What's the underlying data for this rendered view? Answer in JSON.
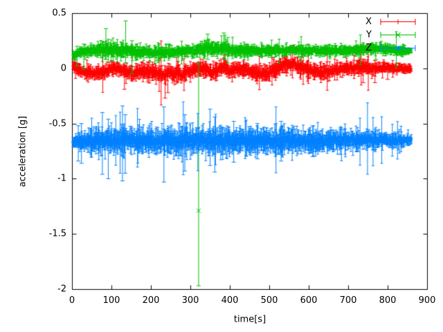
{
  "chart_data": {
    "type": "scatter",
    "style": "points-with-yerrorbars",
    "title": "",
    "xlabel": "time[s]",
    "ylabel": "acceleration [g]",
    "xlim": [
      0,
      900
    ],
    "ylim": [
      -2,
      0.5
    ],
    "grid": false,
    "background": "#ffffff",
    "border_color": "#000000",
    "xticks": [
      {
        "v": 0,
        "label": "0"
      },
      {
        "v": 100,
        "label": "100"
      },
      {
        "v": 200,
        "label": "200"
      },
      {
        "v": 300,
        "label": "300"
      },
      {
        "v": 400,
        "label": "400"
      },
      {
        "v": 500,
        "label": "500"
      },
      {
        "v": 600,
        "label": "600"
      },
      {
        "v": 700,
        "label": "700"
      },
      {
        "v": 800,
        "label": "800"
      },
      {
        "v": 900,
        "label": "900"
      }
    ],
    "yticks": [
      {
        "v": 0.5,
        "label": "0.5"
      },
      {
        "v": 0,
        "label": "0"
      },
      {
        "v": -0.5,
        "label": "-0.5"
      },
      {
        "v": -1,
        "label": "-1"
      },
      {
        "v": -1.5,
        "label": "-1.5"
      },
      {
        "v": -2,
        "label": "-2"
      }
    ],
    "legend": {
      "position": "top-right-inside",
      "entries": [
        {
          "label": "X",
          "color": "#ff0000",
          "marker": "plus"
        },
        {
          "label": "Y",
          "color": "#00c000",
          "marker": "cross"
        },
        {
          "label": "Z",
          "color": "#0080ff",
          "marker": "star"
        }
      ]
    },
    "series": [
      {
        "name": "X",
        "color": "#ff0000",
        "marker": "plus",
        "seed": 101,
        "t_start": 2,
        "t_end": 860,
        "dt": 1,
        "description": "noisy band around 0 g with small error bars",
        "mean_path": [
          [
            2,
            0.02
          ],
          [
            10,
            0.0
          ],
          [
            25,
            -0.02
          ],
          [
            50,
            -0.04
          ],
          [
            75,
            -0.04
          ],
          [
            95,
            -0.01
          ],
          [
            115,
            0.0
          ],
          [
            130,
            -0.02
          ],
          [
            150,
            -0.05
          ],
          [
            170,
            -0.03
          ],
          [
            195,
            -0.03
          ],
          [
            215,
            -0.04
          ],
          [
            233,
            -0.07
          ],
          [
            248,
            -0.03
          ],
          [
            258,
            -0.06
          ],
          [
            268,
            -0.01
          ],
          [
            278,
            -0.06
          ],
          [
            292,
            -0.03
          ],
          [
            310,
            -0.02
          ],
          [
            335,
            0.0
          ],
          [
            355,
            -0.04
          ],
          [
            372,
            -0.01
          ],
          [
            388,
            0.02
          ],
          [
            398,
            -0.03
          ],
          [
            415,
            -0.01
          ],
          [
            440,
            -0.01
          ],
          [
            462,
            -0.045
          ],
          [
            495,
            -0.045
          ],
          [
            515,
            -0.01
          ],
          [
            535,
            0.03
          ],
          [
            560,
            0.045
          ],
          [
            580,
            0.01
          ],
          [
            600,
            -0.01
          ],
          [
            630,
            -0.03
          ],
          [
            660,
            -0.025
          ],
          [
            690,
            0.0
          ],
          [
            715,
            0.0
          ],
          [
            740,
            0.015
          ],
          [
            760,
            -0.01
          ],
          [
            790,
            0.01
          ],
          [
            820,
            0.0
          ],
          [
            860,
            -0.005
          ]
        ],
        "band_halfwidth_path": [
          [
            2,
            0.03
          ],
          [
            40,
            0.035
          ],
          [
            100,
            0.035
          ],
          [
            200,
            0.04
          ],
          [
            300,
            0.04
          ],
          [
            400,
            0.035
          ],
          [
            500,
            0.04
          ],
          [
            600,
            0.035
          ],
          [
            700,
            0.035
          ],
          [
            780,
            0.03
          ],
          [
            860,
            0.02
          ]
        ],
        "outliers": [
          {
            "t": 133,
            "lo": -0.19,
            "hi": 0.02
          },
          {
            "t": 236,
            "lo": -0.27,
            "hi": -0.01
          },
          {
            "t": 243,
            "lo": -0.22,
            "hi": 0.0
          },
          {
            "t": 388,
            "lo": -0.02,
            "hi": 0.12
          },
          {
            "t": 540,
            "lo": -0.02,
            "hi": 0.1
          },
          {
            "t": 738,
            "lo": -0.13,
            "hi": 0.06
          },
          {
            "t": 768,
            "lo": -0.13,
            "hi": 0.07
          },
          {
            "t": 800,
            "lo": -0.1,
            "hi": 0.05
          }
        ]
      },
      {
        "name": "Y",
        "color": "#00c000",
        "marker": "cross",
        "seed": 202,
        "t_start": 2,
        "t_end": 860,
        "dt": 1,
        "description": "noisy band around +0.16 g; one large outlier at t=321 s reaching -1.29 g with error bar down to -1.97 g",
        "mean_path": [
          [
            2,
            0.11
          ],
          [
            20,
            0.14
          ],
          [
            45,
            0.16
          ],
          [
            70,
            0.17
          ],
          [
            95,
            0.17
          ],
          [
            115,
            0.16
          ],
          [
            135,
            0.17
          ],
          [
            160,
            0.15
          ],
          [
            190,
            0.15
          ],
          [
            220,
            0.14
          ],
          [
            250,
            0.15
          ],
          [
            280,
            0.15
          ],
          [
            310,
            0.16
          ],
          [
            330,
            0.17
          ],
          [
            345,
            0.185
          ],
          [
            360,
            0.17
          ],
          [
            382,
            0.19
          ],
          [
            395,
            0.175
          ],
          [
            412,
            0.16
          ],
          [
            450,
            0.16
          ],
          [
            500,
            0.16
          ],
          [
            550,
            0.165
          ],
          [
            600,
            0.16
          ],
          [
            650,
            0.16
          ],
          [
            700,
            0.16
          ],
          [
            745,
            0.17
          ],
          [
            780,
            0.18
          ],
          [
            805,
            0.17
          ],
          [
            830,
            0.16
          ],
          [
            860,
            0.16
          ]
        ],
        "band_halfwidth_path": [
          [
            2,
            0.02
          ],
          [
            40,
            0.03
          ],
          [
            100,
            0.035
          ],
          [
            200,
            0.03
          ],
          [
            300,
            0.03
          ],
          [
            400,
            0.035
          ],
          [
            500,
            0.025
          ],
          [
            600,
            0.025
          ],
          [
            700,
            0.025
          ],
          [
            800,
            0.028
          ],
          [
            860,
            0.02
          ]
        ],
        "outliers": [
          {
            "t": 13,
            "lo": 0.02,
            "hi": 0.2
          },
          {
            "t": 30,
            "lo": -0.01,
            "hi": 0.22
          },
          {
            "t": 86,
            "lo": 0.08,
            "hi": 0.36
          },
          {
            "t": 136,
            "lo": 0.05,
            "hi": 0.43
          },
          {
            "t": 152,
            "lo": -0.05,
            "hi": 0.25
          },
          {
            "t": 321,
            "value": -1.29,
            "lo": -1.97,
            "hi": 0.05
          },
          {
            "t": 344,
            "lo": 0.08,
            "hi": 0.31
          },
          {
            "t": 385,
            "lo": 0.08,
            "hi": 0.32
          },
          {
            "t": 395,
            "lo": 0.05,
            "hi": 0.28
          },
          {
            "t": 770,
            "lo": 0.08,
            "hi": 0.22
          }
        ]
      },
      {
        "name": "Z",
        "color": "#0080ff",
        "marker": "star",
        "seed": 303,
        "t_start": 2,
        "t_end": 860,
        "dt": 1,
        "description": "wide noisy band around -0.66 g with frequent error-bar spikes between about -0.35 and -1.03 g, tapering near the end",
        "mean_path": [
          [
            2,
            -0.67
          ],
          [
            40,
            -0.66
          ],
          [
            80,
            -0.66
          ],
          [
            120,
            -0.655
          ],
          [
            160,
            -0.66
          ],
          [
            200,
            -0.655
          ],
          [
            240,
            -0.66
          ],
          [
            280,
            -0.66
          ],
          [
            320,
            -0.655
          ],
          [
            360,
            -0.66
          ],
          [
            400,
            -0.66
          ],
          [
            440,
            -0.655
          ],
          [
            480,
            -0.66
          ],
          [
            520,
            -0.655
          ],
          [
            560,
            -0.66
          ],
          [
            600,
            -0.66
          ],
          [
            640,
            -0.655
          ],
          [
            680,
            -0.655
          ],
          [
            720,
            -0.65
          ],
          [
            760,
            -0.65
          ],
          [
            800,
            -0.65
          ],
          [
            860,
            -0.65
          ]
        ],
        "band_halfwidth_path": [
          [
            2,
            0.025
          ],
          [
            20,
            0.045
          ],
          [
            60,
            0.06
          ],
          [
            100,
            0.065
          ],
          [
            200,
            0.065
          ],
          [
            300,
            0.068
          ],
          [
            400,
            0.065
          ],
          [
            500,
            0.065
          ],
          [
            600,
            0.06
          ],
          [
            700,
            0.05
          ],
          [
            780,
            0.042
          ],
          [
            860,
            0.025
          ]
        ],
        "outliers": [
          {
            "t": 16,
            "lo": -0.84,
            "hi": -0.52
          },
          {
            "t": 24,
            "lo": -0.86,
            "hi": -0.5
          },
          {
            "t": 77,
            "lo": -0.96,
            "hi": -0.4
          },
          {
            "t": 92,
            "lo": -1.0,
            "hi": -0.46
          },
          {
            "t": 128,
            "lo": -1.02,
            "hi": -0.34
          },
          {
            "t": 135,
            "lo": -0.95,
            "hi": -0.42
          },
          {
            "t": 233,
            "lo": -1.03,
            "hi": -0.35
          },
          {
            "t": 286,
            "lo": -0.93,
            "hi": -0.42
          },
          {
            "t": 350,
            "lo": -0.88,
            "hi": -0.37
          },
          {
            "t": 362,
            "lo": -0.94,
            "hi": -0.44
          },
          {
            "t": 410,
            "lo": -0.85,
            "hi": -0.48
          },
          {
            "t": 470,
            "lo": -0.82,
            "hi": -0.5
          },
          {
            "t": 530,
            "lo": -0.84,
            "hi": -0.48
          },
          {
            "t": 610,
            "lo": -0.8,
            "hi": -0.52
          },
          {
            "t": 680,
            "lo": -0.78,
            "hi": -0.54
          }
        ]
      }
    ]
  }
}
